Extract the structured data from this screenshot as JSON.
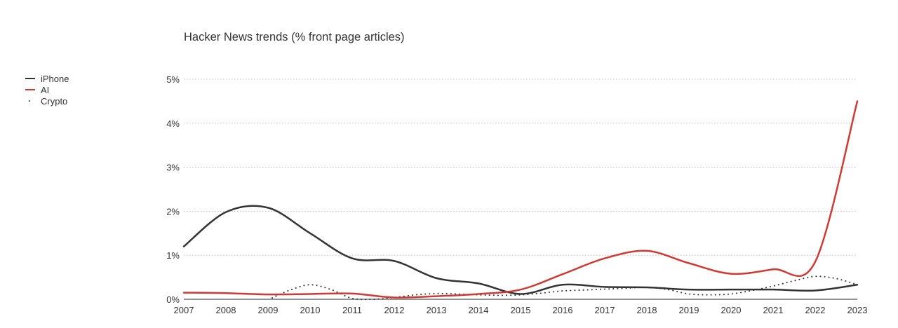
{
  "chart_data": {
    "type": "line",
    "title": "Hacker News trends (% front page articles)",
    "xlabel": "",
    "ylabel": "",
    "x": [
      2007,
      2008,
      2009,
      2010,
      2011,
      2012,
      2013,
      2014,
      2015,
      2016,
      2017,
      2018,
      2019,
      2020,
      2021,
      2022,
      2023
    ],
    "ylim": [
      0,
      5
    ],
    "y_ticks": [
      0,
      1,
      2,
      3,
      4,
      5
    ],
    "y_tick_labels": [
      "0%",
      "1%",
      "2%",
      "3%",
      "4%",
      "5%"
    ],
    "x_tick_labels": [
      "2007",
      "2008",
      "2009",
      "2010",
      "2011",
      "2012",
      "2013",
      "2014",
      "2015",
      "2016",
      "2017",
      "2018",
      "2019",
      "2020",
      "2021",
      "2022",
      "2023"
    ],
    "grid": "horizontal dotted",
    "legend_position": "left",
    "series": [
      {
        "name": "iPhone",
        "style": "solid",
        "color": "#333333",
        "values": [
          1.2,
          1.98,
          2.08,
          1.5,
          0.93,
          0.87,
          0.48,
          0.36,
          0.12,
          0.33,
          0.28,
          0.27,
          0.22,
          0.22,
          0.22,
          0.2,
          0.33
        ]
      },
      {
        "name": "AI",
        "style": "solid",
        "color": "#d03a33",
        "values": [
          0.15,
          0.14,
          0.11,
          0.12,
          0.13,
          0.04,
          0.07,
          0.12,
          0.22,
          0.57,
          0.93,
          1.1,
          0.82,
          0.58,
          0.68,
          0.85,
          4.5
        ]
      },
      {
        "name": "Crypto",
        "style": "dotted",
        "color": "#333333",
        "x": [
          2009.1,
          2009.5,
          2010,
          2010.5,
          2011,
          2011.5,
          2012,
          2012.5,
          2013,
          2013.5,
          2014,
          2014.5,
          2015,
          2015.5,
          2016,
          2016.5,
          2017,
          2017.5,
          2018,
          2018.5,
          2019,
          2019.5,
          2020,
          2020.5,
          2021,
          2021.5,
          2022,
          2022.5,
          2023
        ],
        "values": [
          0.03,
          0.2,
          0.33,
          0.22,
          0.02,
          0.0,
          0.04,
          0.1,
          0.13,
          0.12,
          0.1,
          0.09,
          0.1,
          0.14,
          0.19,
          0.21,
          0.23,
          0.25,
          0.27,
          0.22,
          0.12,
          0.1,
          0.12,
          0.2,
          0.3,
          0.42,
          0.52,
          0.47,
          0.33
        ]
      }
    ]
  }
}
